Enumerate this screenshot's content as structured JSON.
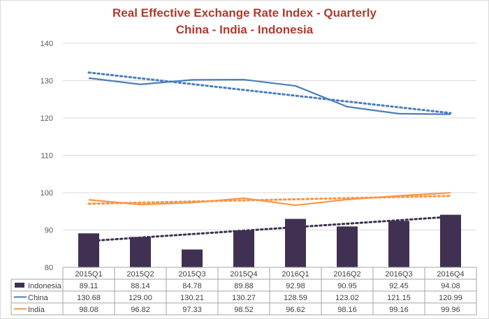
{
  "chart_data": {
    "type": "bar+line",
    "title": "Real Effective Exchange Rate Index - Quarterly",
    "subtitle": "China - India - Indonesia",
    "categories": [
      "2015Q1",
      "2015Q2",
      "2015Q3",
      "2015Q4",
      "2016Q1",
      "2016Q2",
      "2016Q3",
      "2016Q4"
    ],
    "ylim": [
      80,
      140
    ],
    "yticks": [
      80,
      90,
      100,
      110,
      120,
      130,
      140
    ],
    "grid": true,
    "trendlines": true,
    "legend_placement": "data-table",
    "series": [
      {
        "name": "Indonesia",
        "type": "bar",
        "color": "#403152",
        "values": [
          89.11,
          88.14,
          84.78,
          89.88,
          92.98,
          90.95,
          92.45,
          94.08
        ],
        "labels": [
          "89.11",
          "88.14",
          "84.78",
          "89.88",
          "92.98",
          "90.95",
          "92.45",
          "94.08"
        ]
      },
      {
        "name": "China",
        "type": "line",
        "color": "#4a7ebb",
        "values": [
          130.68,
          129.0,
          130.21,
          130.27,
          128.59,
          123.02,
          121.15,
          120.99
        ],
        "labels": [
          "130.68",
          "129.00",
          "130.21",
          "130.27",
          "128.59",
          "123.02",
          "121.15",
          "120.99"
        ]
      },
      {
        "name": "India",
        "type": "line",
        "color": "#f79646",
        "values": [
          98.08,
          96.82,
          97.33,
          98.52,
          96.62,
          98.16,
          99.16,
          99.96
        ],
        "labels": [
          "98.08",
          "96.82",
          "97.33",
          "98.52",
          "96.62",
          "98.16",
          "99.16",
          "99.96"
        ]
      }
    ]
  }
}
